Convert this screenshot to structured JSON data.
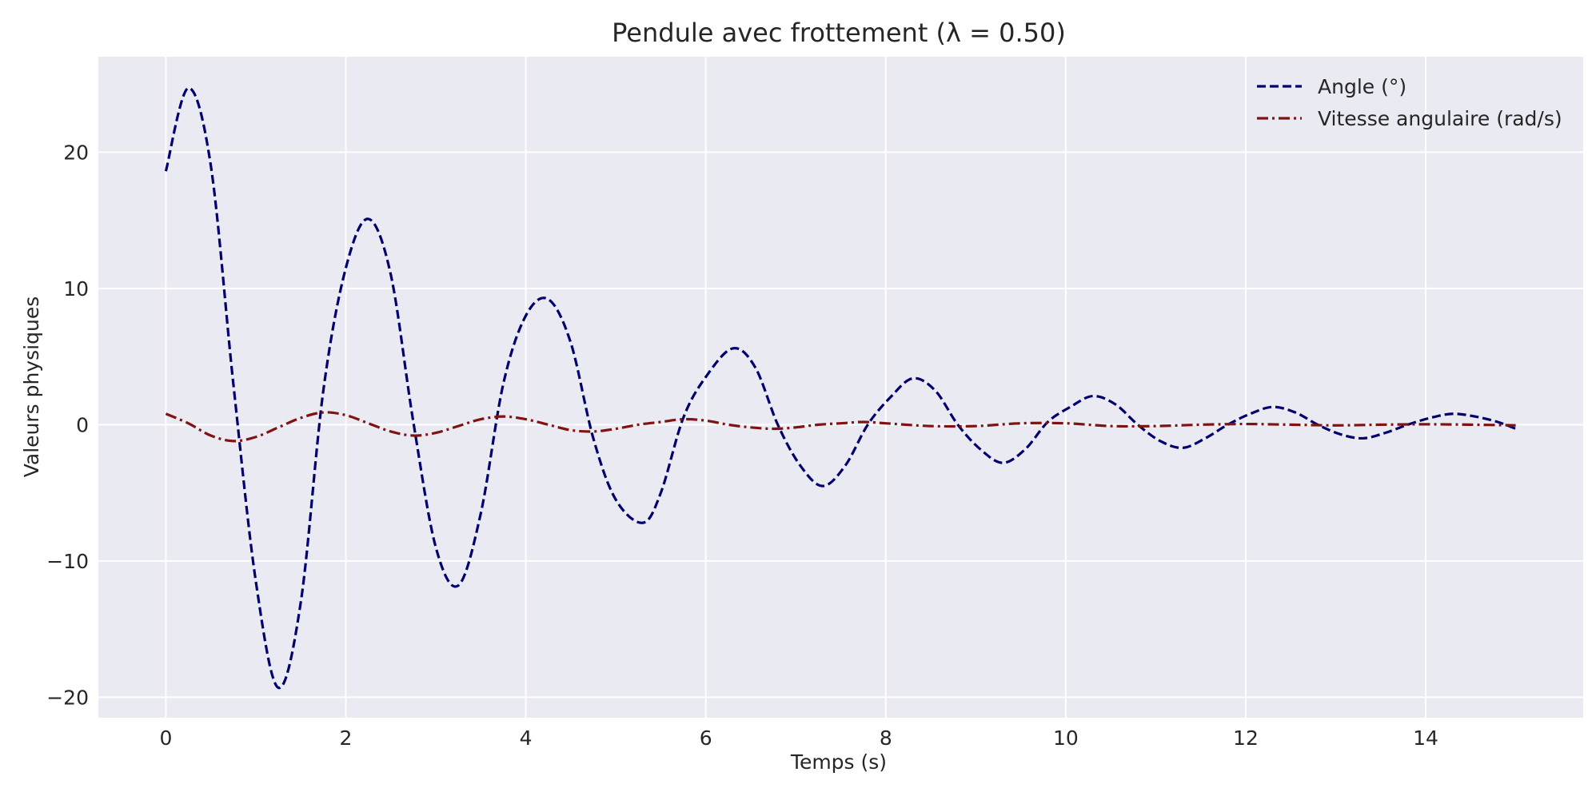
{
  "chart_data": {
    "type": "line",
    "title": "Pendule avec frottement (λ = 0.50)",
    "xlabel": "Temps (s)",
    "ylabel": "Valeurs physiques",
    "xlim": [
      -0.75,
      15.75
    ],
    "ylim": [
      -21.5,
      27.0
    ],
    "xticks": [
      0,
      2,
      4,
      6,
      8,
      10,
      12,
      14
    ],
    "yticks": [
      -20,
      -10,
      0,
      10,
      20
    ],
    "xtick_labels": [
      "0",
      "2",
      "4",
      "6",
      "8",
      "10",
      "12",
      "14"
    ],
    "ytick_labels": [
      "−20",
      "−10",
      "0",
      "10",
      "20"
    ],
    "grid": true,
    "legend_position": "upper right",
    "background": "#eaeaf2",
    "series": [
      {
        "name": "Angle (°)",
        "color": "#00006e",
        "style": "dashed",
        "x": [
          0,
          0.25,
          0.5,
          0.75,
          1.0,
          1.25,
          1.5,
          1.75,
          2.0,
          2.25,
          2.5,
          2.75,
          3.0,
          3.25,
          3.5,
          3.75,
          4.0,
          4.25,
          4.5,
          4.75,
          5.0,
          5.3,
          5.5,
          5.75,
          6.0,
          6.3,
          6.55,
          6.8,
          7.05,
          7.3,
          7.55,
          7.8,
          8.05,
          8.3,
          8.55,
          8.8,
          9.05,
          9.3,
          9.55,
          9.8,
          10.05,
          10.3,
          10.55,
          10.8,
          11.05,
          11.3,
          11.55,
          11.8,
          12.05,
          12.3,
          12.55,
          12.8,
          13.05,
          13.3,
          13.55,
          13.8,
          14.05,
          14.3,
          14.55,
          14.8,
          15.0
        ],
        "y": [
          18.6,
          24.7,
          19.0,
          3.0,
          -11.5,
          -19.3,
          -13.0,
          2.5,
          11.5,
          15.1,
          11.0,
          0.2,
          -9.0,
          -11.8,
          -6.5,
          3.0,
          8.0,
          9.2,
          6.0,
          -1.0,
          -5.5,
          -7.2,
          -5.0,
          0.5,
          3.5,
          5.6,
          4.2,
          0.0,
          -3.0,
          -4.5,
          -3.0,
          0.0,
          2.0,
          3.4,
          2.5,
          0.0,
          -1.8,
          -2.8,
          -1.8,
          0.2,
          1.3,
          2.1,
          1.5,
          0.0,
          -1.2,
          -1.7,
          -1.0,
          0.0,
          0.8,
          1.3,
          0.9,
          0.0,
          -0.7,
          -1.0,
          -0.6,
          0.0,
          0.5,
          0.8,
          0.6,
          0.2,
          -0.3
        ]
      },
      {
        "name": "Vitesse angulaire (rad/s)",
        "color": "#7f1212",
        "style": "dashdot",
        "x": [
          0,
          0.25,
          0.5,
          0.75,
          1.0,
          1.25,
          1.5,
          1.75,
          2.0,
          2.25,
          2.5,
          2.75,
          3.0,
          3.25,
          3.5,
          3.75,
          4.0,
          4.25,
          4.5,
          4.75,
          5.0,
          5.25,
          5.5,
          5.75,
          6.0,
          6.25,
          6.5,
          6.75,
          7.0,
          7.25,
          7.5,
          7.75,
          8.0,
          8.5,
          9.0,
          9.5,
          10.0,
          10.5,
          11.0,
          11.5,
          12.0,
          12.5,
          13.0,
          13.5,
          14.0,
          14.5,
          15.0
        ],
        "y": [
          0.8,
          0.1,
          -0.8,
          -1.2,
          -0.9,
          -0.2,
          0.5,
          0.9,
          0.7,
          0.1,
          -0.5,
          -0.8,
          -0.6,
          -0.1,
          0.4,
          0.6,
          0.4,
          0.0,
          -0.4,
          -0.5,
          -0.3,
          0.0,
          0.2,
          0.4,
          0.3,
          0.0,
          -0.2,
          -0.3,
          -0.2,
          0.0,
          0.1,
          0.2,
          0.1,
          -0.1,
          -0.1,
          0.1,
          0.1,
          -0.1,
          -0.1,
          0.0,
          0.05,
          0.0,
          -0.05,
          0.0,
          0.03,
          0.0,
          -0.05
        ]
      }
    ]
  }
}
